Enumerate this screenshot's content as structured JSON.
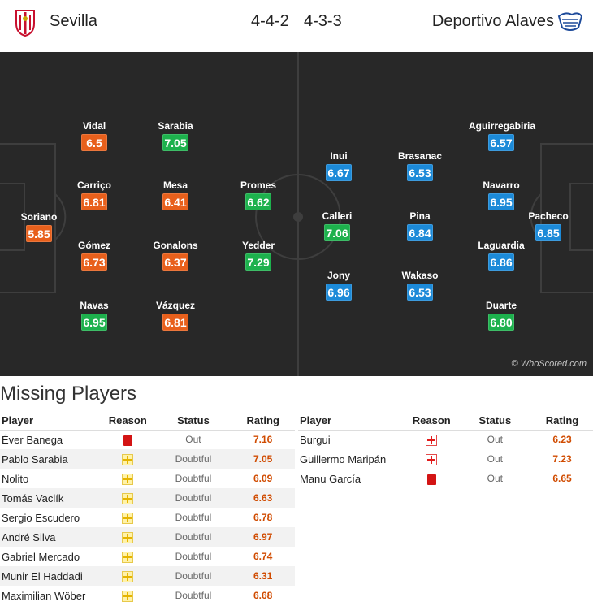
{
  "header": {
    "home_team": "Sevilla",
    "away_team": "Deportivo Alaves",
    "home_formation": "4-4-2",
    "away_formation": "4-3-3"
  },
  "pitch": {
    "watermark": "© WhoScored.com",
    "home_players": [
      {
        "name": "Soriano",
        "rating": "5.85",
        "color": "orange"
      },
      {
        "name": "Vidal",
        "rating": "6.5",
        "color": "orange"
      },
      {
        "name": "Carriço",
        "rating": "6.81",
        "color": "orange"
      },
      {
        "name": "Gómez",
        "rating": "6.73",
        "color": "orange"
      },
      {
        "name": "Navas",
        "rating": "6.95",
        "color": "green"
      },
      {
        "name": "Sarabia",
        "rating": "7.05",
        "color": "green"
      },
      {
        "name": "Mesa",
        "rating": "6.41",
        "color": "orange"
      },
      {
        "name": "Gonalons",
        "rating": "6.37",
        "color": "orange"
      },
      {
        "name": "Vázquez",
        "rating": "6.81",
        "color": "orange"
      },
      {
        "name": "Promes",
        "rating": "6.62",
        "color": "green"
      },
      {
        "name": "Yedder",
        "rating": "7.29",
        "color": "green"
      }
    ],
    "away_players": [
      {
        "name": "Inui",
        "rating": "6.67",
        "color": "blue"
      },
      {
        "name": "Calleri",
        "rating": "7.06",
        "color": "green"
      },
      {
        "name": "Jony",
        "rating": "6.96",
        "color": "blue"
      },
      {
        "name": "Brasanac",
        "rating": "6.53",
        "color": "blue"
      },
      {
        "name": "Pina",
        "rating": "6.84",
        "color": "blue"
      },
      {
        "name": "Wakaso",
        "rating": "6.53",
        "color": "blue"
      },
      {
        "name": "Aguirregabiria",
        "rating": "6.57",
        "color": "blue"
      },
      {
        "name": "Navarro",
        "rating": "6.95",
        "color": "blue"
      },
      {
        "name": "Laguardia",
        "rating": "6.86",
        "color": "blue"
      },
      {
        "name": "Duarte",
        "rating": "6.80",
        "color": "green"
      },
      {
        "name": "Pacheco",
        "rating": "6.85",
        "color": "blue"
      }
    ]
  },
  "missing": {
    "title": "Missing Players",
    "columns": {
      "player": "Player",
      "reason": "Reason",
      "status": "Status",
      "rating": "Rating"
    },
    "home": [
      {
        "player": "Éver Banega",
        "reason_icon": "red-card-icon",
        "status": "Out",
        "rating": "7.16"
      },
      {
        "player": "Pablo Sarabia",
        "reason_icon": "doubtful-icon",
        "status": "Doubtful",
        "rating": "7.05"
      },
      {
        "player": "Nolito",
        "reason_icon": "doubtful-icon",
        "status": "Doubtful",
        "rating": "6.09"
      },
      {
        "player": "Tomás Vaclík",
        "reason_icon": "doubtful-icon",
        "status": "Doubtful",
        "rating": "6.63"
      },
      {
        "player": "Sergio Escudero",
        "reason_icon": "doubtful-icon",
        "status": "Doubtful",
        "rating": "6.78"
      },
      {
        "player": "André Silva",
        "reason_icon": "doubtful-icon",
        "status": "Doubtful",
        "rating": "6.97"
      },
      {
        "player": "Gabriel Mercado",
        "reason_icon": "doubtful-icon",
        "status": "Doubtful",
        "rating": "6.74"
      },
      {
        "player": "Munir El Haddadi",
        "reason_icon": "doubtful-icon",
        "status": "Doubtful",
        "rating": "6.31"
      },
      {
        "player": "Maximilian Wöber",
        "reason_icon": "doubtful-icon",
        "status": "Doubtful",
        "rating": "6.68"
      }
    ],
    "away": [
      {
        "player": "Burgui",
        "reason_icon": "injury-icon",
        "status": "Out",
        "rating": "6.23"
      },
      {
        "player": "Guillermo Maripán",
        "reason_icon": "injury-icon",
        "status": "Out",
        "rating": "7.23"
      },
      {
        "player": "Manu García",
        "reason_icon": "red-card-icon",
        "status": "Out",
        "rating": "6.65"
      }
    ]
  }
}
